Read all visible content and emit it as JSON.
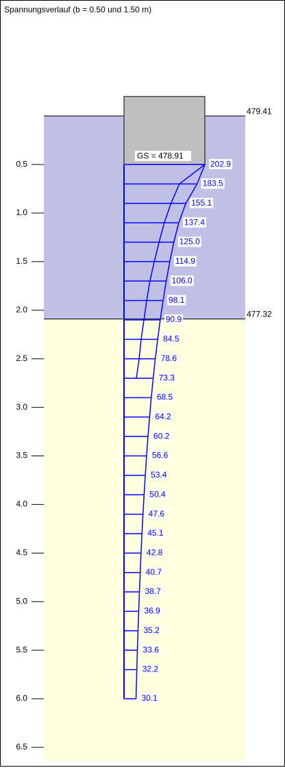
{
  "chart_data": {
    "type": "stress-profile",
    "title": "Spannungsverlauf (b = 0.50 und 1.50 m)",
    "depths": [
      0.5,
      0.7,
      0.9,
      1.1,
      1.3,
      1.5,
      1.7,
      1.9,
      2.1,
      2.3,
      2.5,
      2.7,
      2.9,
      3.1,
      3.3,
      3.5,
      3.7,
      3.9,
      4.1,
      4.3,
      4.5,
      4.7,
      4.9,
      5.1,
      5.3,
      5.5,
      5.7,
      6.0
    ],
    "series": [
      {
        "color": "#0000ff",
        "values": [
          202.9,
          183.5,
          155.1,
          137.4,
          125.0,
          114.9,
          106.0,
          98.1,
          90.9,
          84.5,
          78.6,
          73.3,
          68.5,
          64.2,
          60.2,
          56.6,
          53.4,
          50.4,
          47.6,
          45.1,
          42.8,
          40.7,
          38.7,
          36.9,
          35.2,
          33.6,
          32.2,
          30.1
        ],
        "value_labels": [
          "202.9",
          "183.5",
          "155.1",
          "137.4",
          "125.0",
          "114.9",
          "106.0",
          "98.1",
          "90.9",
          "84.5",
          "78.6",
          "73.3",
          "68.5",
          "64.2",
          "60.2",
          "56.6",
          "53.4",
          "50.4",
          "47.6",
          "45.1",
          "42.8",
          "40.7",
          "38.7",
          "36.9",
          "35.2",
          "33.6",
          "32.2",
          "30.1"
        ]
      },
      {
        "color": "#0000ff",
        "values": [
          202.9,
          139,
          118,
          101,
          88,
          76,
          65,
          57,
          50,
          43,
          38,
          31,
          null,
          null,
          null,
          null,
          null,
          null,
          null,
          null,
          null,
          null,
          null,
          null,
          null,
          null,
          null,
          null
        ]
      }
    ],
    "xlim": [
      0,
      202.9
    ],
    "ylim": [
      0,
      6.64
    ],
    "yticks": [
      0.5,
      {
        "value": 1.0,
        "label": "1.0"
      },
      1.5,
      {
        "value": 2.0,
        "label": "2.0"
      },
      2.5,
      {
        "value": 3.0,
        "label": "3.0"
      },
      3.5,
      {
        "value": 4.0,
        "label": "4.0"
      },
      4.5,
      {
        "value": 5.0,
        "label": "5.0"
      },
      5.5,
      {
        "value": 6.0,
        "label": "6.0"
      },
      6.5
    ],
    "layers": [
      {
        "label": "479.41",
        "depth_top": 0,
        "depth_bottom": 2.09,
        "color": "#c0c0e6"
      },
      {
        "label": "477.32",
        "depth_top": 2.09,
        "depth_bottom": 6.64,
        "color": "#ffffe0"
      }
    ],
    "foundation": {
      "label": "GS = 478.91",
      "depth_top": -0.2,
      "depth_bottom": 0.5,
      "color": "#c0c0c0"
    }
  }
}
